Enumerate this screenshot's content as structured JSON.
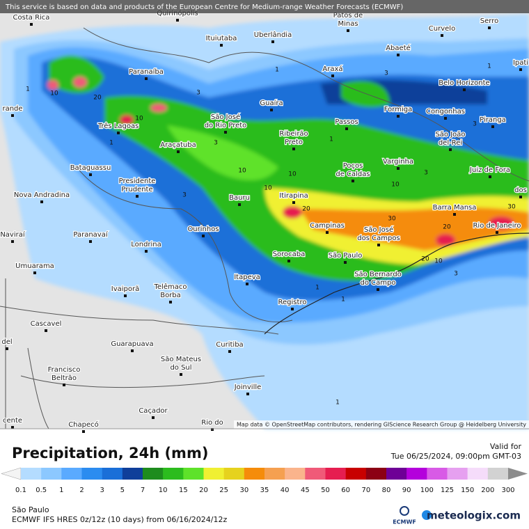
{
  "header": {
    "attribution": "This service is based on data and products of the European Centre for Medium-range Weather Forecasts (ECMWF)"
  },
  "map": {
    "cities": [
      "Costa Rica",
      "Quirinópolis",
      [
        "Patos de",
        "Minas"
      ],
      "Curvelo",
      "Serro",
      "Ipati",
      "Ituiutaba",
      "Uberlândia",
      "Abaeté",
      "Paranaíba",
      "Araxá",
      "Belo Horizonte",
      "Três Lagoas",
      [
        "São José",
        "do Rio Preto"
      ],
      "Guaíra",
      "Formiga",
      "Congonhas",
      "Passos",
      "Piranga",
      [
        "São João",
        "del-Rei"
      ],
      "Araçatuba",
      [
        "Ribeirão",
        "Preto"
      ],
      "Bataguassu",
      [
        "Poços",
        "de Caldas"
      ],
      "Varginha",
      "Juiz de Fora",
      [
        "Presidente",
        "Prudente"
      ],
      "Nova Andradina",
      "Bauru",
      "Itirapina",
      "Barra Mansa",
      "Campinas",
      [
        "São José",
        "dos Campos"
      ],
      "Rio de Janeiro",
      "Naviraí",
      "Paranavaí",
      "Ourinhos",
      "Londrina",
      "Sorocaba",
      "São Paulo",
      "Umuarama",
      "Itapeva",
      [
        "São Bernardo",
        "do Campo"
      ],
      "Ivaiporã",
      [
        "Telêmaco",
        "Borba"
      ],
      "Registro",
      "Cascavel",
      "Guarapuava",
      "Curitiba",
      [
        "São Mateus",
        "do Sul"
      ],
      [
        "Francisco",
        "Beltrão"
      ],
      "Joinville",
      "Caçador",
      "Chapecó",
      "Rio do",
      "del",
      "rande",
      "cente",
      "dos"
    ],
    "contour_labels": [
      "1",
      "10",
      "20",
      "3",
      "1",
      "3",
      "3",
      "1",
      "10",
      "10",
      "10",
      "20",
      "30",
      "20",
      "30",
      "10",
      "20",
      "10",
      "3",
      "1",
      "3",
      "1",
      "1",
      "3",
      "10",
      "1",
      "3",
      "1"
    ],
    "attribution": "Map data © OpenStreetMap contributors, rendering GIScience Research Group @ Heidelberg University"
  },
  "legend": {
    "title": "Precipitation, 24h (mm)",
    "valid_label": "Valid for",
    "valid_time": "Tue 06/25/2024, 09:00pm GMT-03",
    "labels": [
      "0.1",
      "0.5",
      "1",
      "2",
      "3",
      "5",
      "7",
      "10",
      "15",
      "20",
      "25",
      "30",
      "35",
      "40",
      "45",
      "50",
      "60",
      "70",
      "80",
      "90",
      "100",
      "125",
      "150",
      "200",
      "300"
    ],
    "colors": [
      "#b4dcff",
      "#8cc8ff",
      "#5aaaff",
      "#2b8cf0",
      "#1a6fd8",
      "#0f3f9a",
      "#1e8c1e",
      "#2cbc1e",
      "#5ee22a",
      "#f0f032",
      "#e6d21e",
      "#f58c0a",
      "#f5a050",
      "#fab48c",
      "#f05a78",
      "#e61e50",
      "#c80000",
      "#8c0014",
      "#6e0096",
      "#b400dc",
      "#d85ae6",
      "#e6a0f0",
      "#f5dcfa",
      "#d2d2d2"
    ],
    "under_color": "#f4f4f4",
    "over_color": "#8c8c8c"
  },
  "footer": {
    "region": "São Paulo",
    "model": "ECMWF IFS HRES 0z/12z (10 days) from  06/16/2024/12z",
    "ecmwf_logo": "ECMWF",
    "brand": "meteologix.com"
  }
}
